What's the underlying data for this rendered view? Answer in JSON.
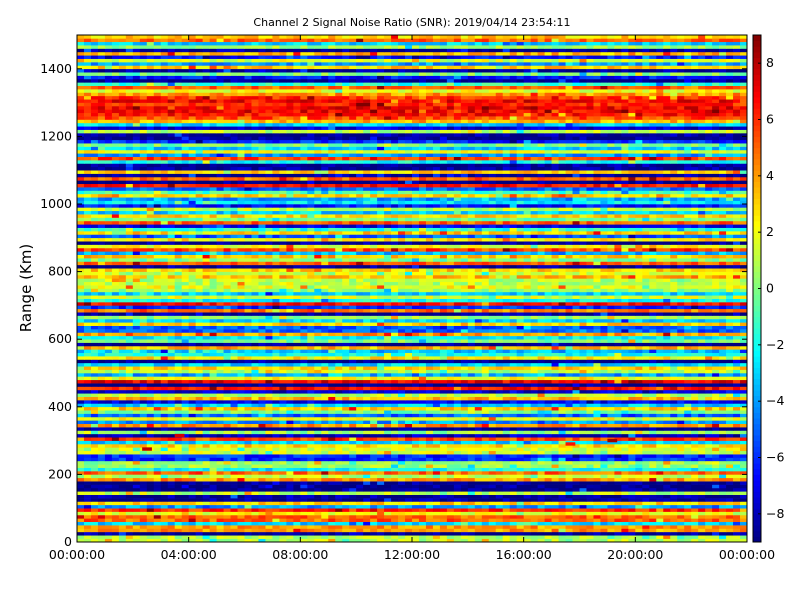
{
  "chart_data": {
    "type": "heatmap",
    "title": "Channel 2 Signal Noise Ratio (SNR): 2019/04/14 23:54:11",
    "xlabel": "",
    "ylabel": "Range (Km)",
    "xlim": [
      "00:00:00",
      "00:00:00"
    ],
    "ylim": [
      0,
      1500
    ],
    "x_ticks": [
      "00:00:00",
      "04:00:00",
      "08:00:00",
      "12:00:00",
      "16:00:00",
      "20:00:00",
      "00:00:00"
    ],
    "y_ticks": [
      0,
      200,
      400,
      600,
      800,
      1000,
      1200,
      1400
    ],
    "colorbar": {
      "colormap": "jet",
      "range": [
        -9,
        9
      ],
      "ticks": [
        -8,
        -6,
        -4,
        -2,
        0,
        2,
        4,
        6,
        8
      ],
      "tick_labels": [
        "−8",
        "−6",
        "−4",
        "−2",
        "0",
        "2",
        "4",
        "6",
        "8"
      ]
    },
    "time_range_hours": [
      0,
      24
    ],
    "range_bin_km": 10,
    "range_profile": [
      {
        "range": [
          0,
          20
        ],
        "snr": 1.0
      },
      {
        "range": [
          20,
          30
        ],
        "snr": -8.5
      },
      {
        "range": [
          30,
          50
        ],
        "snr": 4.0
      },
      {
        "range": [
          50,
          60
        ],
        "snr": -3.0
      },
      {
        "range": [
          60,
          80
        ],
        "snr": 5.0
      },
      {
        "range": [
          80,
          90
        ],
        "snr": 2.0
      },
      {
        "range": [
          90,
          100
        ],
        "snr": 6.0
      },
      {
        "range": [
          100,
          110
        ],
        "snr": -4.0
      },
      {
        "range": [
          110,
          120
        ],
        "snr": 3.0
      },
      {
        "range": [
          120,
          140
        ],
        "snr": -8.5
      },
      {
        "range": [
          140,
          150
        ],
        "snr": 1.0
      },
      {
        "range": [
          150,
          180
        ],
        "snr": -8.8
      },
      {
        "range": [
          180,
          190
        ],
        "snr": 4.0
      },
      {
        "range": [
          190,
          200
        ],
        "snr": 1.0
      },
      {
        "range": [
          200,
          210
        ],
        "snr": 5.0
      },
      {
        "range": [
          210,
          220
        ],
        "snr": -2.0
      },
      {
        "range": [
          220,
          240
        ],
        "snr": 0.5
      },
      {
        "range": [
          240,
          260
        ],
        "snr": -6.0
      },
      {
        "range": [
          260,
          280
        ],
        "snr": 1.5
      },
      {
        "range": [
          280,
          290
        ],
        "snr": 3.0
      },
      {
        "range": [
          290,
          300
        ],
        "snr": -3.0
      },
      {
        "range": [
          300,
          310
        ],
        "snr": 5.5
      },
      {
        "range": [
          310,
          320
        ],
        "snr": -8.0
      },
      {
        "range": [
          320,
          330
        ],
        "snr": 0.5
      },
      {
        "range": [
          330,
          340
        ],
        "snr": -8.8
      },
      {
        "range": [
          340,
          350
        ],
        "snr": 4.0
      },
      {
        "range": [
          350,
          360
        ],
        "snr": -4.0
      },
      {
        "range": [
          360,
          370
        ],
        "snr": 2.0
      },
      {
        "range": [
          370,
          380
        ],
        "snr": -5.0
      },
      {
        "range": [
          380,
          390
        ],
        "snr": 0.0
      },
      {
        "range": [
          390,
          400
        ],
        "snr": 3.0
      },
      {
        "range": [
          400,
          410
        ],
        "snr": -3.0
      },
      {
        "range": [
          410,
          420
        ],
        "snr": -7.0
      },
      {
        "range": [
          420,
          430
        ],
        "snr": 3.5
      },
      {
        "range": [
          430,
          440
        ],
        "snr": 1.0
      },
      {
        "range": [
          440,
          450
        ],
        "snr": -7.5
      },
      {
        "range": [
          450,
          460
        ],
        "snr": 6.5
      },
      {
        "range": [
          460,
          470
        ],
        "snr": -8.8
      },
      {
        "range": [
          470,
          480
        ],
        "snr": 7.0
      },
      {
        "range": [
          480,
          490
        ],
        "snr": 2.0
      },
      {
        "range": [
          490,
          500
        ],
        "snr": -4.0
      },
      {
        "range": [
          500,
          510
        ],
        "snr": 1.0
      },
      {
        "range": [
          510,
          520
        ],
        "snr": 3.0
      },
      {
        "range": [
          520,
          530
        ],
        "snr": -3.0
      },
      {
        "range": [
          530,
          540
        ],
        "snr": -8.8
      },
      {
        "range": [
          540,
          550
        ],
        "snr": 2.5
      },
      {
        "range": [
          550,
          560
        ],
        "snr": -2.0
      },
      {
        "range": [
          560,
          570
        ],
        "snr": -3.5
      },
      {
        "range": [
          570,
          580
        ],
        "snr": 3.5
      },
      {
        "range": [
          580,
          590
        ],
        "snr": -8.8
      },
      {
        "range": [
          590,
          600
        ],
        "snr": 0.0
      },
      {
        "range": [
          600,
          610
        ],
        "snr": -2.5
      },
      {
        "range": [
          610,
          620
        ],
        "snr": 4.0
      },
      {
        "range": [
          620,
          640
        ],
        "snr": -5.0
      },
      {
        "range": [
          640,
          650
        ],
        "snr": 3.0
      },
      {
        "range": [
          650,
          660
        ],
        "snr": -3.0
      },
      {
        "range": [
          660,
          670
        ],
        "snr": 0.5
      },
      {
        "range": [
          670,
          680
        ],
        "snr": -8.5
      },
      {
        "range": [
          680,
          690
        ],
        "snr": 4.5
      },
      {
        "range": [
          690,
          700
        ],
        "snr": -6.0
      },
      {
        "range": [
          700,
          710
        ],
        "snr": 6.5
      },
      {
        "range": [
          710,
          720
        ],
        "snr": -2.0
      },
      {
        "range": [
          720,
          730
        ],
        "snr": 1.5
      },
      {
        "range": [
          730,
          740
        ],
        "snr": -3.0
      },
      {
        "range": [
          740,
          750
        ],
        "snr": 0.5
      },
      {
        "range": [
          750,
          760
        ],
        "snr": 2.0
      },
      {
        "range": [
          760,
          780
        ],
        "snr": 1.0
      },
      {
        "range": [
          780,
          790
        ],
        "snr": 3.5
      },
      {
        "range": [
          790,
          800
        ],
        "snr": 1.5
      },
      {
        "range": [
          800,
          810
        ],
        "snr": 3.0
      },
      {
        "range": [
          810,
          820
        ],
        "snr": -8.5
      },
      {
        "range": [
          820,
          830
        ],
        "snr": 5.0
      },
      {
        "range": [
          830,
          840
        ],
        "snr": 0.0
      },
      {
        "range": [
          840,
          850
        ],
        "snr": 3.0
      },
      {
        "range": [
          850,
          860
        ],
        "snr": -3.5
      },
      {
        "range": [
          860,
          870
        ],
        "snr": 5.5
      },
      {
        "range": [
          870,
          880
        ],
        "snr": 2.0
      },
      {
        "range": [
          880,
          890
        ],
        "snr": -8.8
      },
      {
        "range": [
          890,
          900
        ],
        "snr": 2.5
      },
      {
        "range": [
          900,
          910
        ],
        "snr": -5.0
      },
      {
        "range": [
          910,
          920
        ],
        "snr": 3.0
      },
      {
        "range": [
          920,
          930
        ],
        "snr": -1.5
      },
      {
        "range": [
          930,
          940
        ],
        "snr": -7.0
      },
      {
        "range": [
          940,
          950
        ],
        "snr": 5.0
      },
      {
        "range": [
          950,
          960
        ],
        "snr": 0.0
      },
      {
        "range": [
          960,
          970
        ],
        "snr": 3.0
      },
      {
        "range": [
          970,
          980
        ],
        "snr": -3.0
      },
      {
        "range": [
          980,
          990
        ],
        "snr": 1.0
      },
      {
        "range": [
          990,
          1000
        ],
        "snr": -6.5
      },
      {
        "range": [
          1000,
          1010
        ],
        "snr": -2.5
      },
      {
        "range": [
          1010,
          1020
        ],
        "snr": -4.0
      },
      {
        "range": [
          1020,
          1030
        ],
        "snr": 3.0
      },
      {
        "range": [
          1030,
          1040
        ],
        "snr": -1.0
      },
      {
        "range": [
          1040,
          1050
        ],
        "snr": -5.0
      },
      {
        "range": [
          1050,
          1060
        ],
        "snr": 6.5
      },
      {
        "range": [
          1060,
          1070
        ],
        "snr": -8.8
      },
      {
        "range": [
          1070,
          1080
        ],
        "snr": 5.0
      },
      {
        "range": [
          1080,
          1090
        ],
        "snr": -8.8
      },
      {
        "range": [
          1090,
          1100
        ],
        "snr": 3.0
      },
      {
        "range": [
          1100,
          1120
        ],
        "snr": -8.5
      },
      {
        "range": [
          1120,
          1130
        ],
        "snr": -2.0
      },
      {
        "range": [
          1130,
          1140
        ],
        "snr": 5.5
      },
      {
        "range": [
          1140,
          1150
        ],
        "snr": -4.0
      },
      {
        "range": [
          1150,
          1160
        ],
        "snr": 2.0
      },
      {
        "range": [
          1160,
          1170
        ],
        "snr": -3.0
      },
      {
        "range": [
          1170,
          1180
        ],
        "snr": 0.0
      },
      {
        "range": [
          1180,
          1190
        ],
        "snr": -6.0
      },
      {
        "range": [
          1190,
          1210
        ],
        "snr": -8.8
      },
      {
        "range": [
          1210,
          1220
        ],
        "snr": 1.0
      },
      {
        "range": [
          1220,
          1230
        ],
        "snr": -7.5
      },
      {
        "range": [
          1230,
          1240
        ],
        "snr": -3.0
      },
      {
        "range": [
          1240,
          1250
        ],
        "snr": 3.5
      },
      {
        "range": [
          1250,
          1260
        ],
        "snr": 5.5
      },
      {
        "range": [
          1260,
          1270
        ],
        "snr": 6.5
      },
      {
        "range": [
          1270,
          1290
        ],
        "snr": 7.0
      },
      {
        "range": [
          1290,
          1300
        ],
        "snr": 6.0
      },
      {
        "range": [
          1300,
          1310
        ],
        "snr": 7.0
      },
      {
        "range": [
          1310,
          1320
        ],
        "snr": 6.0
      },
      {
        "range": [
          1320,
          1330
        ],
        "snr": 4.0
      },
      {
        "range": [
          1330,
          1340
        ],
        "snr": 2.0
      },
      {
        "range": [
          1340,
          1350
        ],
        "snr": 5.0
      },
      {
        "range": [
          1350,
          1360
        ],
        "snr": -1.5
      },
      {
        "range": [
          1360,
          1370
        ],
        "snr": -8.8
      },
      {
        "range": [
          1370,
          1380
        ],
        "snr": -6.5
      },
      {
        "range": [
          1380,
          1390
        ],
        "snr": 0.0
      },
      {
        "range": [
          1390,
          1400
        ],
        "snr": -8.5
      },
      {
        "range": [
          1400,
          1410
        ],
        "snr": 3.0
      },
      {
        "range": [
          1410,
          1420
        ],
        "snr": -4.0
      },
      {
        "range": [
          1420,
          1430
        ],
        "snr": 1.5
      },
      {
        "range": [
          1430,
          1440
        ],
        "snr": -6.5
      },
      {
        "range": [
          1440,
          1450
        ],
        "snr": 3.5
      },
      {
        "range": [
          1450,
          1460
        ],
        "snr": -8.5
      },
      {
        "range": [
          1460,
          1470
        ],
        "snr": 0.5
      },
      {
        "range": [
          1470,
          1480
        ],
        "snr": -3.0
      },
      {
        "range": [
          1480,
          1490
        ],
        "snr": 5.0
      },
      {
        "range": [
          1490,
          1500
        ],
        "snr": 3.0
      }
    ],
    "notable_points": [
      {
        "time": "02:20:00",
        "range": 270,
        "snr": 8.0
      },
      {
        "time": "03:30:00",
        "range": 310,
        "snr": 7.5
      },
      {
        "time": "19:00:00",
        "range": 295,
        "snr": 8.5
      },
      {
        "time": "17:30:00",
        "range": 285,
        "snr": 6.5
      }
    ]
  }
}
